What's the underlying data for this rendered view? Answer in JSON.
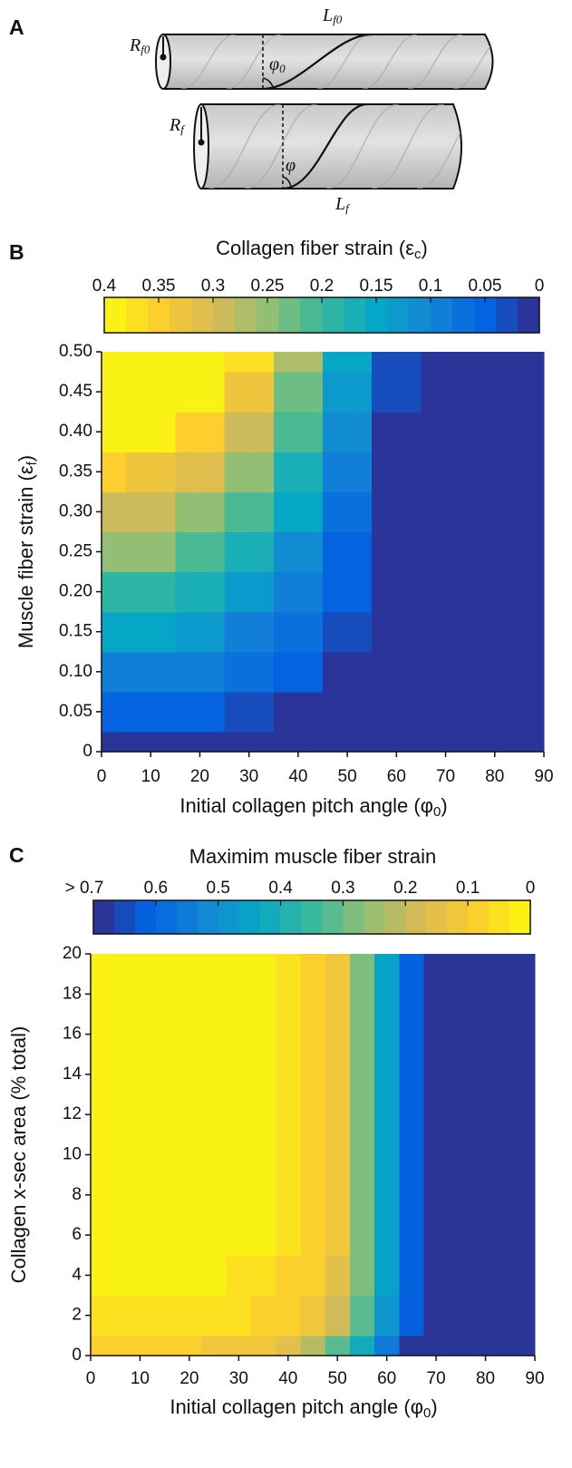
{
  "panels": {
    "a": "A",
    "b": "B",
    "c": "C"
  },
  "diagram": {
    "top": {
      "radius": [
        "R",
        "f0"
      ],
      "length": [
        "L",
        "f0"
      ],
      "angle": [
        "φ",
        "0"
      ]
    },
    "bottom": {
      "radius": [
        "R",
        "f"
      ],
      "length": [
        "L",
        "f"
      ],
      "angle": "φ"
    }
  },
  "chart_data": [
    {
      "type": "heatmap",
      "title": [
        "Collagen fiber strain (ε",
        "c",
        ")"
      ],
      "x_label": [
        "Initial collagen pitch angle (φ",
        "0",
        ")"
      ],
      "y_label": [
        "Muscle fiber strain (ε",
        "f",
        ")"
      ],
      "x": [
        0,
        10,
        20,
        30,
        40,
        50,
        60,
        70,
        80,
        90
      ],
      "y": [
        0,
        0.05,
        0.1,
        0.15,
        0.2,
        0.25,
        0.3,
        0.35,
        0.4,
        0.45,
        0.5
      ],
      "z": [
        [
          0,
          0,
          0,
          0,
          0,
          0,
          0,
          0,
          0,
          0
        ],
        [
          0.05,
          0.048,
          0.042,
          0.032,
          0.02,
          0.007,
          0,
          0,
          0,
          0
        ],
        [
          0.1,
          0.096,
          0.084,
          0.065,
          0.042,
          0.017,
          0,
          0,
          0,
          0
        ],
        [
          0.15,
          0.144,
          0.127,
          0.1,
          0.066,
          0.028,
          0,
          0,
          0,
          0
        ],
        [
          0.2,
          0.192,
          0.17,
          0.135,
          0.091,
          0.041,
          0,
          0,
          0,
          0
        ],
        [
          0.25,
          0.241,
          0.214,
          0.171,
          0.117,
          0.056,
          0,
          0,
          0,
          0
        ],
        [
          0.3,
          0.289,
          0.258,
          0.208,
          0.144,
          0.072,
          0,
          0,
          0,
          0
        ],
        [
          0.35,
          0.338,
          0.302,
          0.246,
          0.173,
          0.09,
          0.006,
          0,
          0,
          0
        ],
        [
          0.4,
          0.387,
          0.347,
          0.284,
          0.202,
          0.109,
          0.013,
          0,
          0,
          0
        ],
        [
          0.45,
          0.435,
          0.392,
          0.323,
          0.232,
          0.128,
          0.021,
          0,
          0,
          0
        ],
        [
          0.5,
          0.484,
          0.437,
          0.362,
          0.263,
          0.149,
          0.031,
          0,
          0,
          0
        ]
      ],
      "xlim": [
        0,
        90
      ],
      "ylim": [
        0,
        0.5
      ],
      "xticks": [
        0,
        10,
        20,
        30,
        40,
        50,
        60,
        70,
        80,
        90
      ],
      "yticks": [
        0,
        0.05,
        {
          "value": 0.1,
          "label": "0.10"
        },
        0.15,
        {
          "value": 0.2,
          "label": "0.20"
        },
        0.25,
        {
          "value": 0.3,
          "label": "0.30"
        },
        0.35,
        {
          "value": 0.4,
          "label": "0.40"
        },
        0.45,
        {
          "value": 0.5,
          "label": "0.50"
        }
      ],
      "clim": [
        0.4,
        0
      ],
      "cticks": [
        0.4,
        0.35,
        0.3,
        0.25,
        0.2,
        0.15,
        0.1,
        0.05,
        0
      ],
      "levels": 20,
      "colormap": [
        "#f9fb0e",
        "#fcce2e",
        "#d9ba56",
        "#92bf73",
        "#38b99e",
        "#06a7c6",
        "#1485d4",
        "#0363e1",
        "#352a87"
      ]
    },
    {
      "type": "heatmap",
      "title": [
        "Maximim muscle fiber strain"
      ],
      "x_label": [
        "Initial collagen pitch angle (φ",
        "0",
        ")"
      ],
      "y_label": [
        "Collagen x-sec area (% total)"
      ],
      "x": [
        0,
        5,
        10,
        15,
        20,
        25,
        30,
        35,
        40,
        45,
        50,
        55,
        60,
        65,
        70,
        75,
        80,
        85,
        90
      ],
      "y": [
        0,
        2,
        4,
        6,
        8,
        10,
        12,
        14,
        16,
        18,
        20
      ],
      "z": [
        [
          0.1,
          0.1,
          0.1,
          0.1,
          0.1,
          0.11,
          0.12,
          0.13,
          0.16,
          0.22,
          0.32,
          0.42,
          0.55,
          0.68,
          0.8,
          0.8,
          0.8,
          0.8,
          0.8
        ],
        [
          0.05,
          0.05,
          0.05,
          0.05,
          0.05,
          0.06,
          0.06,
          0.07,
          0.09,
          0.12,
          0.2,
          0.32,
          0.48,
          0.62,
          0.8,
          0.8,
          0.8,
          0.8,
          0.8
        ],
        [
          0.03,
          0.03,
          0.03,
          0.03,
          0.03,
          0.03,
          0.04,
          0.05,
          0.07,
          0.1,
          0.16,
          0.3,
          0.46,
          0.62,
          0.8,
          0.8,
          0.8,
          0.8,
          0.8
        ],
        [
          0.02,
          0.02,
          0.02,
          0.02,
          0.02,
          0.02,
          0.02,
          0.03,
          0.05,
          0.08,
          0.13,
          0.29,
          0.45,
          0.62,
          0.8,
          0.8,
          0.8,
          0.8,
          0.8
        ],
        [
          0.01,
          0.01,
          0.01,
          0.01,
          0.01,
          0.01,
          0.01,
          0.02,
          0.04,
          0.07,
          0.12,
          0.28,
          0.45,
          0.62,
          0.8,
          0.8,
          0.8,
          0.8,
          0.8
        ],
        [
          0.01,
          0.01,
          0.01,
          0.01,
          0.01,
          0.01,
          0.01,
          0.02,
          0.04,
          0.07,
          0.12,
          0.28,
          0.45,
          0.62,
          0.8,
          0.8,
          0.8,
          0.8,
          0.8
        ],
        [
          0.01,
          0.01,
          0.01,
          0.01,
          0.01,
          0.01,
          0.01,
          0.02,
          0.04,
          0.07,
          0.12,
          0.28,
          0.45,
          0.62,
          0.8,
          0.8,
          0.8,
          0.8,
          0.8
        ],
        [
          0.01,
          0.01,
          0.01,
          0.01,
          0.01,
          0.01,
          0.01,
          0.02,
          0.04,
          0.07,
          0.12,
          0.28,
          0.45,
          0.62,
          0.8,
          0.8,
          0.8,
          0.8,
          0.8
        ],
        [
          0.01,
          0.01,
          0.01,
          0.01,
          0.01,
          0.01,
          0.01,
          0.02,
          0.04,
          0.07,
          0.12,
          0.28,
          0.45,
          0.62,
          0.8,
          0.8,
          0.8,
          0.8,
          0.8
        ],
        [
          0.01,
          0.01,
          0.01,
          0.01,
          0.01,
          0.01,
          0.01,
          0.02,
          0.04,
          0.07,
          0.12,
          0.28,
          0.45,
          0.62,
          0.8,
          0.8,
          0.8,
          0.8,
          0.8
        ],
        [
          0.01,
          0.01,
          0.01,
          0.01,
          0.01,
          0.01,
          0.01,
          0.02,
          0.04,
          0.07,
          0.12,
          0.28,
          0.45,
          0.62,
          0.8,
          0.8,
          0.8,
          0.8,
          0.8
        ]
      ],
      "xlim": [
        0,
        90
      ],
      "ylim": [
        0,
        20
      ],
      "xticks": [
        0,
        10,
        20,
        30,
        40,
        50,
        60,
        70,
        80,
        90
      ],
      "yticks": [
        0,
        2,
        4,
        6,
        8,
        10,
        12,
        14,
        16,
        18,
        20
      ],
      "clim": [
        0.7,
        0
      ],
      "cticks": [
        {
          "value": 0.7,
          "label": "> 0.7"
        },
        0.6,
        0.5,
        0.4,
        0.3,
        0.2,
        0.1,
        0
      ],
      "levels": 21,
      "colormap": [
        "#352a87",
        "#0363e1",
        "#1485d4",
        "#06a7c6",
        "#38b99e",
        "#92bf73",
        "#d9ba56",
        "#fcce2e",
        "#f9fb0e"
      ]
    }
  ]
}
